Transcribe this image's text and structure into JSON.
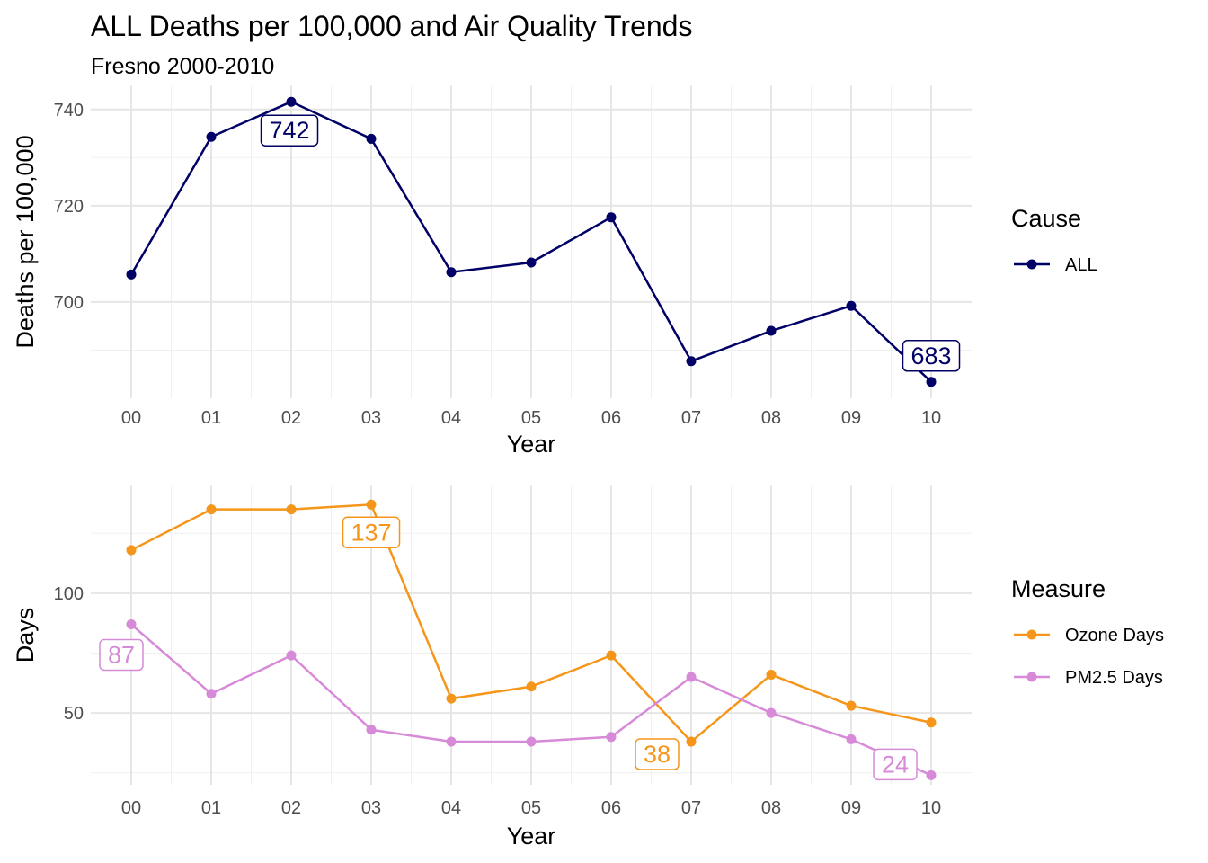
{
  "chart_data": [
    {
      "type": "line",
      "title": "ALL Deaths per 100,000 and Air Quality Trends",
      "subtitle": "Fresno 2000-2010",
      "categories": [
        "00",
        "01",
        "02",
        "03",
        "04",
        "05",
        "06",
        "07",
        "08",
        "09",
        "10"
      ],
      "xlabel": "Year",
      "ylabel": "Deaths per 100,000",
      "yticks": [
        "700",
        "720",
        "740"
      ],
      "ylim": [
        680,
        745
      ],
      "legend": {
        "title": "Cause",
        "placement": "right"
      },
      "series": [
        {
          "name": "ALL",
          "color": "#000066",
          "values": [
            705.7,
            734.3,
            741.6,
            733.9,
            706.2,
            708.2,
            717.6,
            687.7,
            694.0,
            699.2,
            683.4
          ]
        }
      ],
      "callouts": [
        {
          "text": "742",
          "category": "02",
          "series": "ALL"
        },
        {
          "text": "683",
          "category": "10",
          "series": "ALL"
        }
      ]
    },
    {
      "type": "line",
      "categories": [
        "00",
        "01",
        "02",
        "03",
        "04",
        "05",
        "06",
        "07",
        "08",
        "09",
        "10"
      ],
      "xlabel": "Year",
      "ylabel": "Days",
      "yticks": [
        "50",
        "100"
      ],
      "ylim": [
        20,
        145
      ],
      "legend": {
        "title": "Measure",
        "placement": "right"
      },
      "series": [
        {
          "name": "Ozone Days",
          "color": "#f5961a",
          "values": [
            118,
            135,
            135,
            137,
            56,
            61,
            74,
            38,
            66,
            53,
            46
          ]
        },
        {
          "name": "PM2.5 Days",
          "color": "#d68ad8",
          "values": [
            87,
            58,
            74,
            43,
            38,
            38,
            40,
            65,
            50,
            39,
            24
          ]
        }
      ],
      "callouts": [
        {
          "text": "137",
          "category": "03",
          "series": "Ozone Days"
        },
        {
          "text": "38",
          "category": "07",
          "series": "Ozone Days"
        },
        {
          "text": "87",
          "category": "00",
          "series": "PM2.5 Days"
        },
        {
          "text": "24",
          "category": "10",
          "series": "PM2.5 Days"
        }
      ]
    }
  ]
}
